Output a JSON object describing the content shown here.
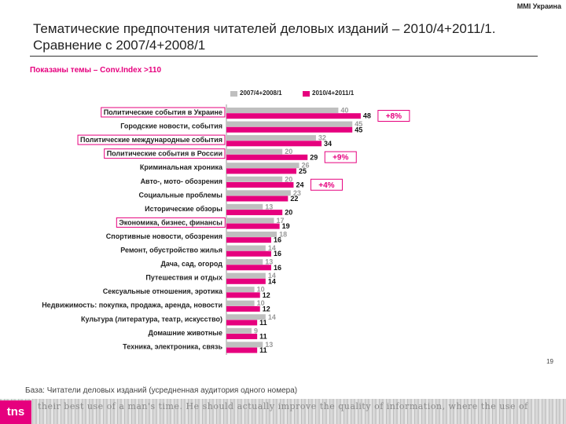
{
  "brand": "MMI Украина",
  "title_line1": "Тематические предпочтения читателей деловых изданий – 2010/4+2011/1.",
  "title_line2": "Сравнение с 2007/4+2008/1",
  "subtitle": "Показаны темы – Conv.Index >110",
  "footer": "База: Читатели деловых изданий (усредненная аудитория одного номера)",
  "page_number": "19",
  "logo": "tns",
  "photo_text": "their best use of a man's time. He should actually improve the quality of information, where the use of",
  "colors": {
    "grey": "#bfbfbf",
    "pink": "#e6007e",
    "accent": "#e6007e"
  },
  "chart_data": {
    "type": "bar",
    "orientation": "horizontal",
    "title": "",
    "xlabel": "",
    "ylabel": "",
    "xlim": [
      0,
      50
    ],
    "grid": false,
    "legend_position": "top",
    "categories": [
      "Политические события в Украине",
      "Городские новости, события",
      "Политические международные события",
      "Политические события в России",
      "Криминальная хроника",
      "Авто-, мото- обозрения",
      "Социальные проблемы",
      "Исторические обзоры",
      "Экономика, бизнес, финансы",
      "Спортивные новости, обозрения",
      "Ремонт, обустройство жилья",
      "Дача, сад, огород",
      "Путешествия и отдых",
      "Сексуальные отношения, эротика",
      "Недвижимость: покупка, продажа, аренда, новости",
      "Культура (литература, театр, искусство)",
      "Домашние животные",
      "Техника, электроника, связь"
    ],
    "highlighted": [
      "Политические события в Украине",
      "Политические международные события",
      "Политические события в России",
      "Экономика, бизнес, финансы"
    ],
    "series": [
      {
        "name": "2007/4+2008/1",
        "color": "#bfbfbf",
        "values": [
          40,
          45,
          32,
          20,
          26,
          20,
          23,
          13,
          17,
          18,
          14,
          13,
          14,
          10,
          10,
          14,
          9,
          13
        ]
      },
      {
        "name": "2010/4+2011/1",
        "color": "#e6007e",
        "values": [
          48,
          45,
          34,
          29,
          25,
          24,
          22,
          20,
          19,
          16,
          16,
          16,
          14,
          12,
          12,
          11,
          11,
          11
        ]
      }
    ],
    "annotations": [
      {
        "category": "Политические события в Украине",
        "text": "+8%"
      },
      {
        "category": "Политические события в России",
        "text": "+9%"
      },
      {
        "category": "Авто-, мото- обозрения",
        "text": "+4%"
      }
    ]
  }
}
